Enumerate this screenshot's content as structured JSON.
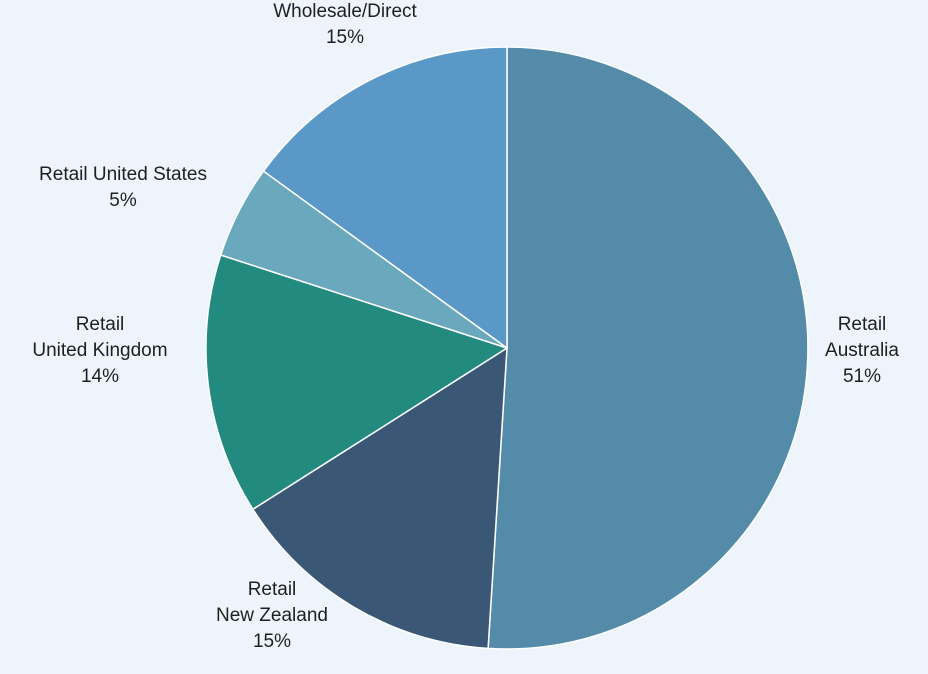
{
  "chart_data": {
    "type": "pie",
    "slices": [
      {
        "name": "Retail Australia",
        "label_lines": [
          "Retail",
          "Australia",
          "51%"
        ],
        "value": 51,
        "color": "#548ba8"
      },
      {
        "name": "Retail New Zealand",
        "label_lines": [
          "Retail",
          "New Zealand",
          "15%"
        ],
        "value": 15,
        "color": "#3a5875"
      },
      {
        "name": "Retail United Kingdom",
        "label_lines": [
          "Retail",
          "United Kingdom",
          "14%"
        ],
        "value": 14,
        "color": "#238a80"
      },
      {
        "name": "Retail United States",
        "label_lines": [
          "Retail United States",
          "5%"
        ],
        "value": 5,
        "color": "#69a8bd"
      },
      {
        "name": "Wholesale/Direct",
        "label_lines": [
          "Wholesale/Direct",
          "15%"
        ],
        "value": 15,
        "color": "#5a98c8"
      }
    ],
    "start": "12 o'clock",
    "direction": "clockwise",
    "background": "#eef4fb",
    "slice_border_color": "#ffffff"
  }
}
